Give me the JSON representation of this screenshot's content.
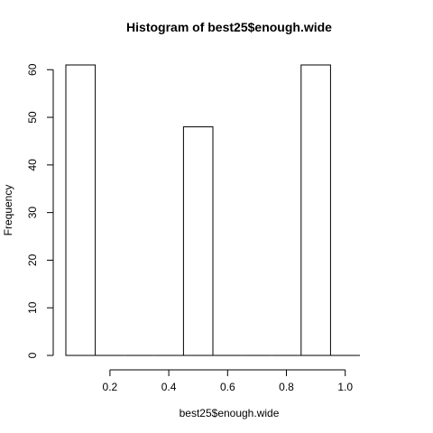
{
  "chart_data": {
    "type": "bar",
    "title": "Histogram of best25$enough.wide",
    "xlabel": "best25$enough.wide",
    "ylabel": "Frequency",
    "bins": [
      {
        "x0": 0.05,
        "x1": 0.15,
        "count": 61
      },
      {
        "x0": 0.15,
        "x1": 0.25,
        "count": 0
      },
      {
        "x0": 0.25,
        "x1": 0.35,
        "count": 0
      },
      {
        "x0": 0.35,
        "x1": 0.45,
        "count": 0
      },
      {
        "x0": 0.45,
        "x1": 0.55,
        "count": 48
      },
      {
        "x0": 0.55,
        "x1": 0.65,
        "count": 0
      },
      {
        "x0": 0.65,
        "x1": 0.75,
        "count": 0
      },
      {
        "x0": 0.75,
        "x1": 0.85,
        "count": 0
      },
      {
        "x0": 0.85,
        "x1": 0.95,
        "count": 61
      },
      {
        "x0": 0.95,
        "x1": 1.05,
        "count": 0
      }
    ],
    "xlim": [
      0.05,
      1.05
    ],
    "ylim": [
      0,
      61
    ],
    "xticks": [
      0.2,
      0.4,
      0.6,
      0.8,
      1.0
    ],
    "xtick_labels": [
      "0.2",
      "0.4",
      "0.6",
      "0.8",
      "1.0"
    ],
    "yticks": [
      0,
      10,
      20,
      30,
      40,
      50,
      60
    ],
    "ytick_labels": [
      "0",
      "10",
      "20",
      "30",
      "40",
      "50",
      "60"
    ],
    "grid": false,
    "colors": {
      "bar_fill": "#ffffff",
      "bar_stroke": "#000000"
    }
  }
}
